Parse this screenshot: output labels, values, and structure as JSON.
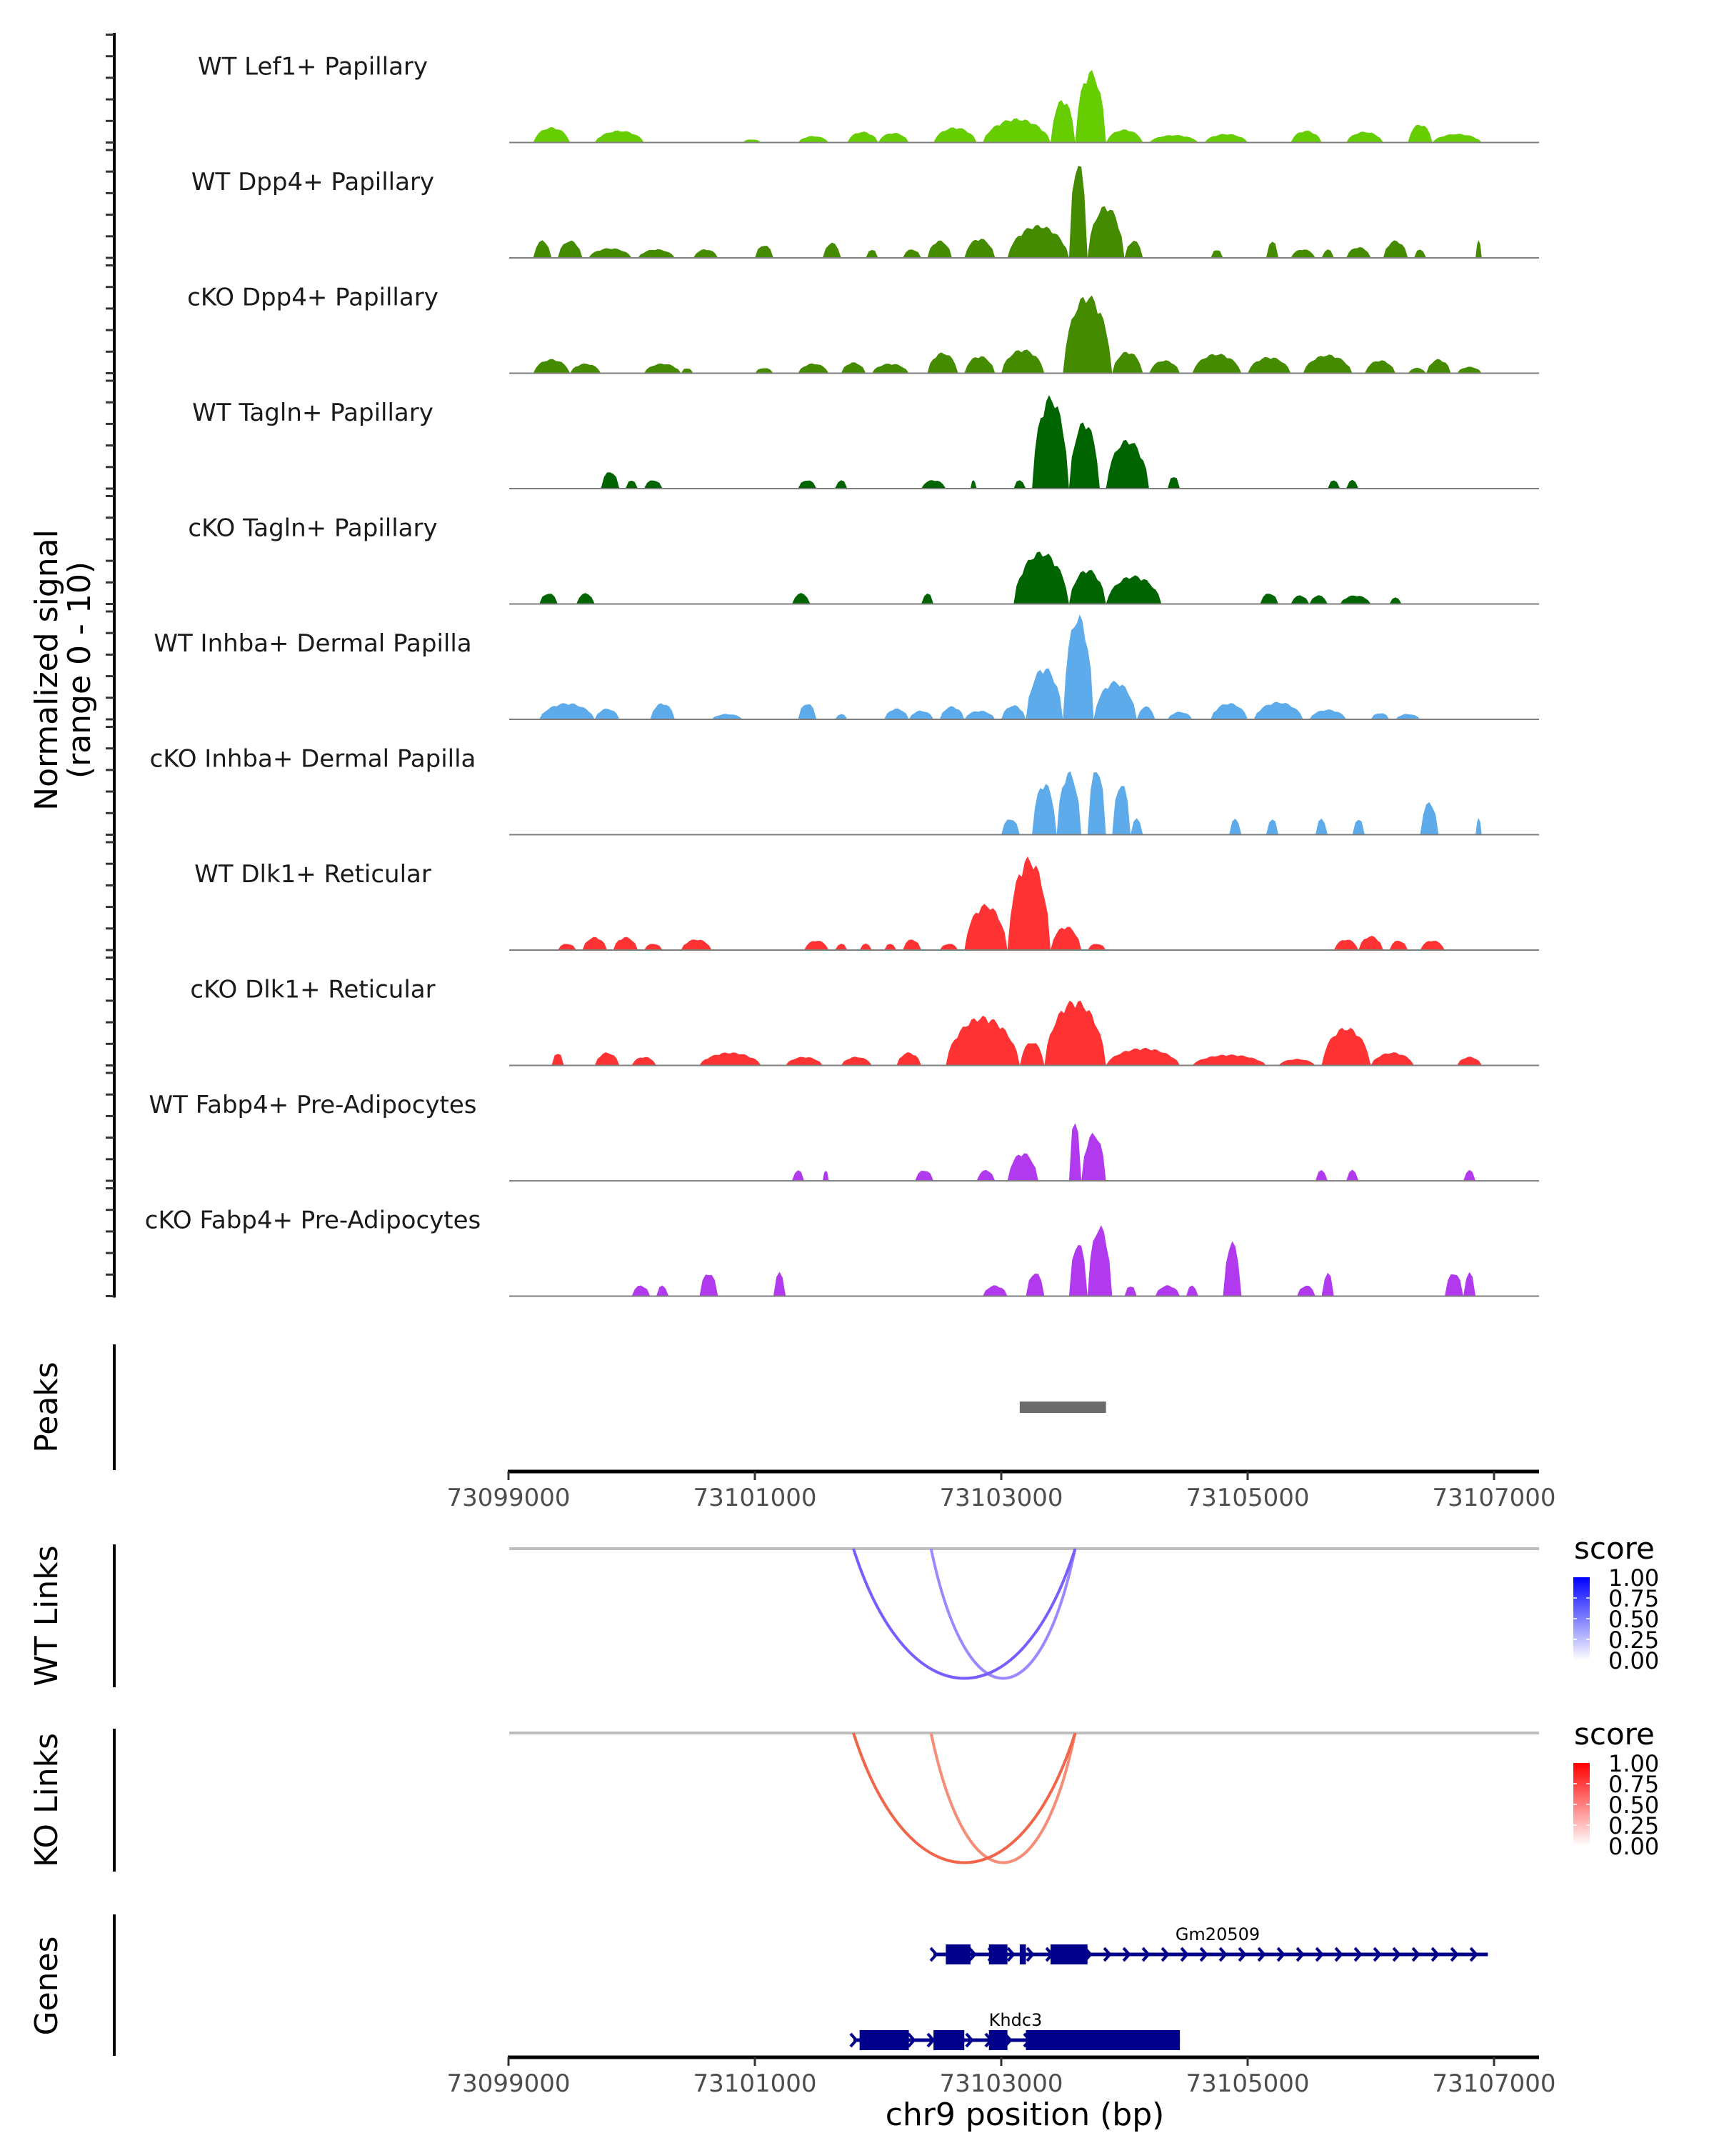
{
  "chart_data": {
    "type": "area",
    "title": "",
    "region": {
      "chrom": "chr9",
      "start": 73099000,
      "end": 73107000
    },
    "xlabel": "chr9 position (bp)",
    "ylabel_line1": "Normalized signal",
    "ylabel_line2": "(range 0 - 10)",
    "ylim": [
      0,
      10
    ],
    "x_ticks": [
      73099000,
      73101000,
      73103000,
      73105000,
      73107000
    ],
    "x_tick_labels": [
      "73099000",
      "73101000",
      "73103000",
      "73105000",
      "73107000"
    ],
    "coverage_tracks": [
      {
        "name": "WT Lef1+ Papillary",
        "color": "#66CD00",
        "peaks": [
          [
            73099200,
            73099500,
            1.4
          ],
          [
            73099700,
            73100100,
            1.1
          ],
          [
            73100900,
            73101050,
            0.3
          ],
          [
            73101350,
            73101600,
            0.6
          ],
          [
            73101750,
            73102000,
            1.0
          ],
          [
            73102000,
            73102250,
            0.9
          ],
          [
            73102450,
            73102800,
            1.4
          ],
          [
            73102850,
            73103400,
            2.2
          ],
          [
            73103400,
            73103600,
            4.0
          ],
          [
            73103600,
            73103850,
            6.6
          ],
          [
            73103850,
            73104150,
            1.2
          ],
          [
            73104200,
            73104600,
            0.7
          ],
          [
            73104650,
            73105000,
            0.8
          ],
          [
            73105350,
            73105600,
            1.1
          ],
          [
            73105800,
            73106100,
            1.0
          ],
          [
            73106300,
            73106500,
            1.7
          ],
          [
            73106500,
            73106900,
            0.8
          ]
        ]
      },
      {
        "name": "WT Dpp4+ Papillary",
        "color": "#458B00",
        "peaks": [
          [
            73099200,
            73099350,
            1.6
          ],
          [
            73099400,
            73099600,
            1.6
          ],
          [
            73099650,
            73100000,
            0.9
          ],
          [
            73100050,
            73100350,
            0.8
          ],
          [
            73100500,
            73100700,
            0.8
          ],
          [
            73101000,
            73101150,
            1.2
          ],
          [
            73101550,
            73101700,
            1.4
          ],
          [
            73101900,
            73102000,
            0.8
          ],
          [
            73102200,
            73102350,
            0.8
          ],
          [
            73102400,
            73102600,
            1.6
          ],
          [
            73102700,
            73102950,
            1.8
          ],
          [
            73103050,
            73103550,
            3.0
          ],
          [
            73103550,
            73103700,
            9.0
          ],
          [
            73103700,
            73104000,
            4.8
          ],
          [
            73104000,
            73104150,
            1.6
          ],
          [
            73104700,
            73104800,
            0.8
          ],
          [
            73105150,
            73105250,
            1.6
          ],
          [
            73105350,
            73105550,
            0.8
          ],
          [
            73105600,
            73105700,
            0.8
          ],
          [
            73105800,
            73106000,
            1.0
          ],
          [
            73106100,
            73106300,
            1.6
          ],
          [
            73106350,
            73106450,
            0.8
          ],
          [
            73106850,
            73106900,
            1.6
          ]
        ]
      },
      {
        "name": "cKO Dpp4+ Papillary",
        "color": "#458B00",
        "peaks": [
          [
            73099200,
            73099500,
            1.3
          ],
          [
            73099500,
            73099750,
            0.9
          ],
          [
            73100100,
            73100400,
            0.9
          ],
          [
            73100400,
            73100500,
            0.5
          ],
          [
            73101000,
            73101150,
            0.5
          ],
          [
            73101350,
            73101600,
            0.9
          ],
          [
            73101700,
            73101900,
            1.0
          ],
          [
            73101950,
            73102250,
            0.9
          ],
          [
            73102400,
            73102650,
            1.9
          ],
          [
            73102700,
            73102950,
            1.6
          ],
          [
            73103000,
            73103350,
            2.2
          ],
          [
            73103500,
            73103900,
            7.2
          ],
          [
            73103900,
            73104150,
            2.0
          ],
          [
            73104200,
            73104450,
            1.2
          ],
          [
            73104550,
            73104950,
            1.8
          ],
          [
            73105000,
            73105350,
            1.5
          ],
          [
            73105450,
            73105850,
            1.7
          ],
          [
            73105950,
            73106200,
            1.2
          ],
          [
            73106300,
            73106450,
            0.5
          ],
          [
            73106450,
            73106650,
            1.3
          ],
          [
            73106700,
            73106900,
            0.6
          ]
        ]
      },
      {
        "name": "WT Tagln+ Papillary",
        "color": "#006400",
        "peaks": [
          [
            73099750,
            73099900,
            1.6
          ],
          [
            73099950,
            73100050,
            0.8
          ],
          [
            73100100,
            73100250,
            0.8
          ],
          [
            73101350,
            73101500,
            0.8
          ],
          [
            73101650,
            73101750,
            0.8
          ],
          [
            73102350,
            73102550,
            0.8
          ],
          [
            73102750,
            73102800,
            0.8
          ],
          [
            73103100,
            73103200,
            0.8
          ],
          [
            73103250,
            73103550,
            8.5
          ],
          [
            73103550,
            73103800,
            6.2
          ],
          [
            73103850,
            73104200,
            4.5
          ],
          [
            73104350,
            73104450,
            1.2
          ],
          [
            73105650,
            73105750,
            0.8
          ],
          [
            73105800,
            73105900,
            0.8
          ]
        ]
      },
      {
        "name": "cKO Tagln+ Papillary",
        "color": "#006400",
        "peaks": [
          [
            73099250,
            73099400,
            1.0
          ],
          [
            73099550,
            73099700,
            1.0
          ],
          [
            73101300,
            73101450,
            1.0
          ],
          [
            73102350,
            73102450,
            1.0
          ],
          [
            73103100,
            73103550,
            4.8
          ],
          [
            73103550,
            73103850,
            3.2
          ],
          [
            73103850,
            73104300,
            2.6
          ],
          [
            73105100,
            73105250,
            1.0
          ],
          [
            73105350,
            73105500,
            0.8
          ],
          [
            73105500,
            73105650,
            0.8
          ],
          [
            73105750,
            73106000,
            0.8
          ],
          [
            73106150,
            73106250,
            0.6
          ]
        ]
      },
      {
        "name": "WT Inhba+ Dermal Papilla",
        "color": "#5DABEB",
        "peaks": [
          [
            73099250,
            73099700,
            1.5
          ],
          [
            73099700,
            73099900,
            1.0
          ],
          [
            73100150,
            73100350,
            1.5
          ],
          [
            73100650,
            73100900,
            0.5
          ],
          [
            73101350,
            73101500,
            1.5
          ],
          [
            73101650,
            73101750,
            0.5
          ],
          [
            73102050,
            73102250,
            1.0
          ],
          [
            73102250,
            73102450,
            0.8
          ],
          [
            73102500,
            73102700,
            1.2
          ],
          [
            73102700,
            73102950,
            0.8
          ],
          [
            73103000,
            73103200,
            1.3
          ],
          [
            73103200,
            73103500,
            4.8
          ],
          [
            73103500,
            73103750,
            9.6
          ],
          [
            73103750,
            73104100,
            3.5
          ],
          [
            73104100,
            73104250,
            1.2
          ],
          [
            73104350,
            73104550,
            0.7
          ],
          [
            73104700,
            73105000,
            1.5
          ],
          [
            73105050,
            73105450,
            1.6
          ],
          [
            73105500,
            73105800,
            0.9
          ],
          [
            73106000,
            73106150,
            0.6
          ],
          [
            73106200,
            73106400,
            0.5
          ]
        ]
      },
      {
        "name": "cKO Inhba+ Dermal Papilla",
        "color": "#5DABEB",
        "peaks": [
          [
            73103000,
            73103150,
            1.5
          ],
          [
            73103250,
            73103450,
            4.8
          ],
          [
            73103450,
            73103650,
            5.8
          ],
          [
            73103700,
            73103850,
            6.2
          ],
          [
            73103900,
            73104050,
            4.8
          ],
          [
            73104050,
            73104150,
            1.5
          ],
          [
            73104850,
            73104950,
            1.5
          ],
          [
            73105150,
            73105250,
            1.5
          ],
          [
            73105550,
            73105650,
            1.5
          ],
          [
            73105850,
            73105950,
            1.5
          ],
          [
            73106400,
            73106550,
            3.0
          ],
          [
            73106850,
            73106900,
            1.5
          ]
        ]
      },
      {
        "name": "WT Dlk1+ Reticular",
        "color": "#FF3333",
        "peaks": [
          [
            73099400,
            73099550,
            0.6
          ],
          [
            73099600,
            73099800,
            1.2
          ],
          [
            73099850,
            73100050,
            1.2
          ],
          [
            73100100,
            73100250,
            0.6
          ],
          [
            73100400,
            73100650,
            1.0
          ],
          [
            73101400,
            73101600,
            0.9
          ],
          [
            73101650,
            73101750,
            0.6
          ],
          [
            73101850,
            73101950,
            0.6
          ],
          [
            73102050,
            73102150,
            0.6
          ],
          [
            73102200,
            73102350,
            1.0
          ],
          [
            73102500,
            73102650,
            0.6
          ],
          [
            73102700,
            73103050,
            4.2
          ],
          [
            73103050,
            73103400,
            8.5
          ],
          [
            73103400,
            73103650,
            2.2
          ],
          [
            73103700,
            73103850,
            0.6
          ],
          [
            73105700,
            73105900,
            1.0
          ],
          [
            73105900,
            73106100,
            1.3
          ],
          [
            73106150,
            73106300,
            0.9
          ],
          [
            73106400,
            73106600,
            0.9
          ]
        ]
      },
      {
        "name": "cKO Dlk1+ Reticular",
        "color": "#FF3333",
        "peaks": [
          [
            73099350,
            73099450,
            1.2
          ],
          [
            73099700,
            73099900,
            1.2
          ],
          [
            73100000,
            73100200,
            0.8
          ],
          [
            73100550,
            73101050,
            1.2
          ],
          [
            73101250,
            73101550,
            0.8
          ],
          [
            73101700,
            73101950,
            0.8
          ],
          [
            73102150,
            73102350,
            1.2
          ],
          [
            73102550,
            73103150,
            4.5
          ],
          [
            73103150,
            73103350,
            2.2
          ],
          [
            73103350,
            73103850,
            6.0
          ],
          [
            73103850,
            73104450,
            1.6
          ],
          [
            73104550,
            73105150,
            1.0
          ],
          [
            73105250,
            73105550,
            0.6
          ],
          [
            73105600,
            73106000,
            3.5
          ],
          [
            73106000,
            73106350,
            1.2
          ],
          [
            73106700,
            73106900,
            0.8
          ]
        ]
      },
      {
        "name": "WT Fabp4+ Pre-Adipocytes",
        "color": "#B23AEE",
        "peaks": [
          [
            73101300,
            73101400,
            1.0
          ],
          [
            73101550,
            73101600,
            1.0
          ],
          [
            73102300,
            73102450,
            1.0
          ],
          [
            73102800,
            73102950,
            1.0
          ],
          [
            73103050,
            73103300,
            2.6
          ],
          [
            73103550,
            73103650,
            5.8
          ],
          [
            73103650,
            73103850,
            4.4
          ],
          [
            73105550,
            73105650,
            1.0
          ],
          [
            73105800,
            73105900,
            1.0
          ],
          [
            73106750,
            73106850,
            1.0
          ]
        ]
      },
      {
        "name": "cKO Fabp4+ Pre-Adipocytes",
        "color": "#B23AEE",
        "peaks": [
          [
            73100000,
            73100150,
            1.0
          ],
          [
            73100200,
            73100300,
            1.0
          ],
          [
            73100550,
            73100700,
            2.2
          ],
          [
            73101150,
            73101250,
            2.2
          ],
          [
            73102850,
            73103050,
            1.0
          ],
          [
            73103200,
            73103350,
            2.2
          ],
          [
            73103550,
            73103700,
            5.0
          ],
          [
            73103700,
            73103900,
            6.5
          ],
          [
            73104000,
            73104100,
            1.0
          ],
          [
            73104250,
            73104450,
            1.0
          ],
          [
            73104500,
            73104600,
            1.0
          ],
          [
            73104800,
            73104950,
            5.0
          ],
          [
            73105400,
            73105550,
            1.0
          ],
          [
            73105600,
            73105700,
            2.2
          ],
          [
            73106600,
            73106750,
            2.2
          ],
          [
            73106750,
            73106850,
            2.2
          ]
        ]
      }
    ],
    "peaks_track": {
      "label": "Peaks",
      "color": "#6B6B6B",
      "regions": [
        [
          73103150,
          73103850
        ]
      ]
    },
    "link_tracks": [
      {
        "label": "WT Links",
        "legend_title": "score",
        "high_color": "#0000FF",
        "legend_ticks": [
          "1.00",
          "0.75",
          "0.50",
          "0.25",
          "0.00"
        ],
        "links": [
          {
            "start": 73101800,
            "end": 73103600,
            "score": 0.65
          },
          {
            "start": 73102430,
            "end": 73103600,
            "score": 0.3
          }
        ]
      },
      {
        "label": "KO Links",
        "legend_title": "score",
        "high_color": "#FF0000",
        "legend_ticks": [
          "1.00",
          "0.75",
          "0.50",
          "0.25",
          "0.00"
        ],
        "links": [
          {
            "start": 73101800,
            "end": 73103600,
            "score": 0.7
          },
          {
            "start": 73102430,
            "end": 73103600,
            "score": 0.35
          }
        ]
      }
    ],
    "genes_track": {
      "label": "Genes",
      "color": "#00008B",
      "genes": [
        {
          "name": "Gm20509",
          "strand": "+",
          "start": 73102450,
          "end": 73106950,
          "exons": [
            [
              73102550,
              73102750
            ],
            [
              73102900,
              73103050
            ],
            [
              73103150,
              73103200
            ],
            [
              73103400,
              73103700
            ]
          ]
        },
        {
          "name": "Khdc3",
          "strand": "+",
          "start": 73101800,
          "end": 73104450,
          "exons": [
            [
              73101850,
              73102250
            ],
            [
              73102450,
              73102700
            ],
            [
              73102900,
              73103050
            ],
            [
              73103200,
              73104450
            ]
          ]
        }
      ]
    }
  }
}
